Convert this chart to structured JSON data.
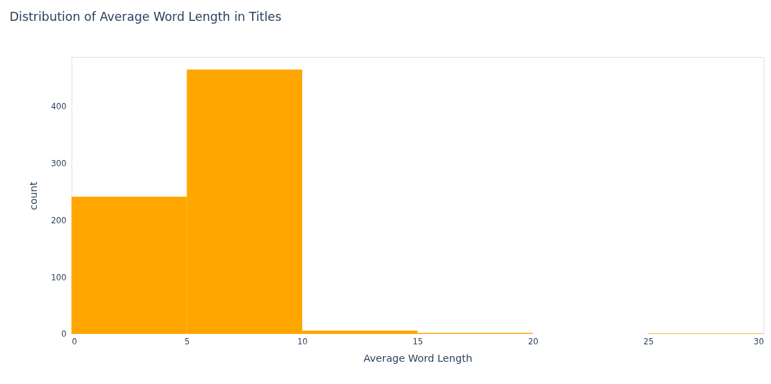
{
  "chart_data": {
    "type": "histogram",
    "title": "Distribution of Average Word Length in Titles",
    "xlabel": "Average Word Length",
    "ylabel": "count",
    "bins": [
      0,
      5,
      10,
      15,
      20,
      25,
      30
    ],
    "values": [
      241,
      464,
      6,
      2,
      0,
      1
    ],
    "color": "#ffa500",
    "xlim": [
      0,
      30
    ],
    "xticks": [
      0,
      5,
      10,
      15,
      20,
      25,
      30
    ],
    "ylim": [
      0,
      486
    ],
    "yticks": [
      0,
      100,
      200,
      300,
      400
    ],
    "grid": "y"
  }
}
